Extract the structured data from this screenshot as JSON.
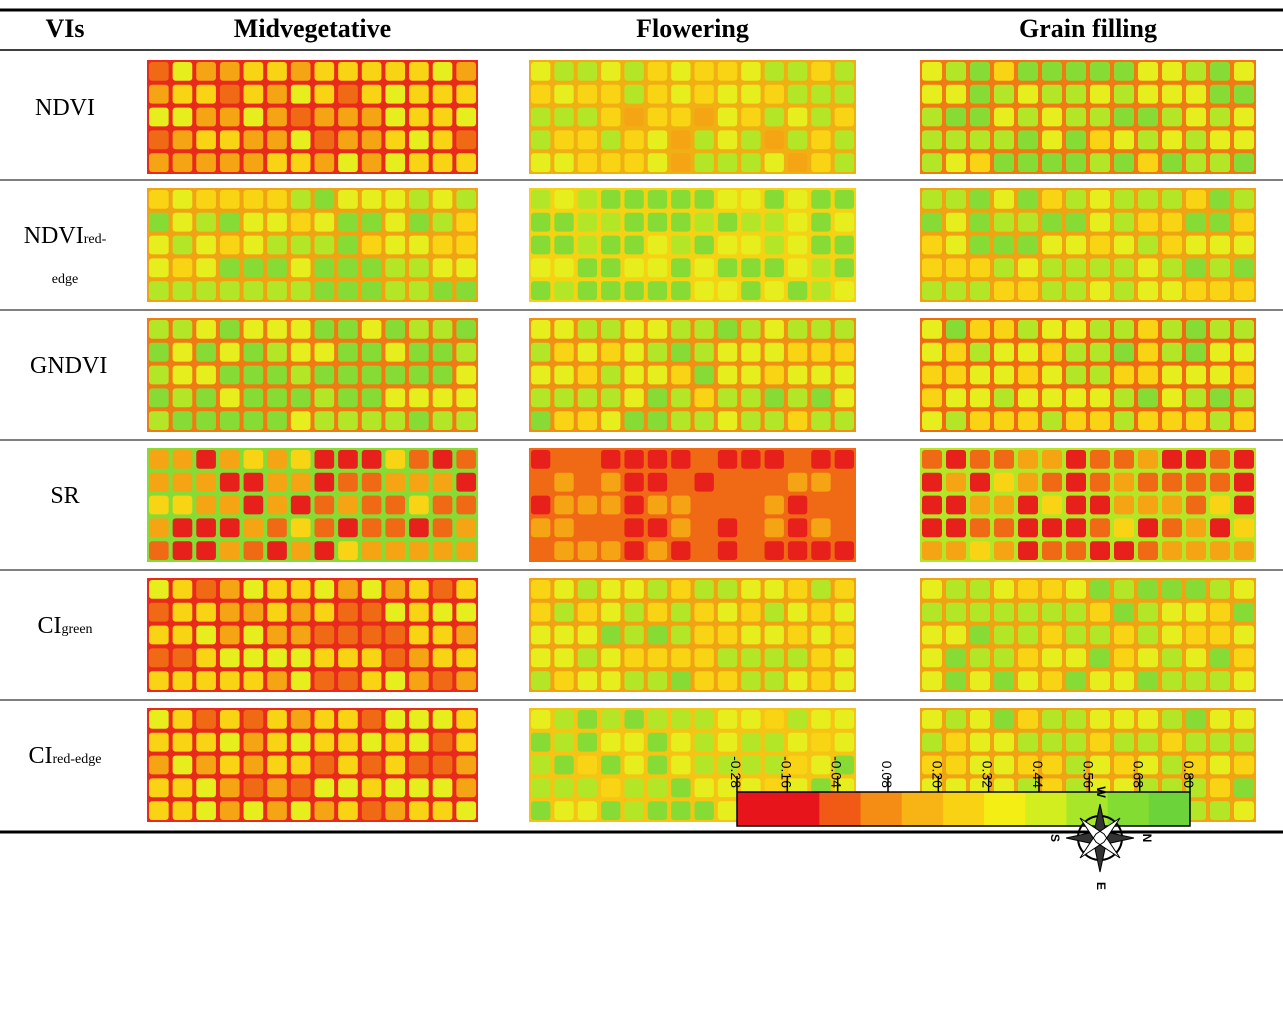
{
  "table": {
    "header": [
      "VIs",
      "Midvegetative",
      "Flowering",
      "Grain filling"
    ],
    "rows": [
      {
        "main": "NDVI",
        "sub": ""
      },
      {
        "main": "NDVI",
        "sub": "red-edge"
      },
      {
        "main": "GNDVI",
        "sub": ""
      },
      {
        "main": "SR",
        "sub": ""
      },
      {
        "main": "CI",
        "sub": "green"
      },
      {
        "main": "CI",
        "sub": "red-edge"
      }
    ]
  },
  "colorbar": {
    "lim": [
      -0.28,
      0.8
    ],
    "ticks": [
      {
        "value": -0.28,
        "label": "-0.28"
      },
      {
        "value": -0.16,
        "label": "-0.16"
      },
      {
        "value": -0.04,
        "label": "-0.04"
      },
      {
        "value": 0.08,
        "label": "0.08"
      },
      {
        "value": 0.2,
        "label": "0.20"
      },
      {
        "value": 0.32,
        "label": "0.32"
      },
      {
        "value": 0.44,
        "label": "0.44"
      },
      {
        "value": 0.56,
        "label": "0.56"
      },
      {
        "value": 0.68,
        "label": "0.68"
      },
      {
        "value": 0.8,
        "label": "0.80"
      }
    ],
    "colors": [
      "#e8141c",
      "#e8141c",
      "#f05a14",
      "#f58c14",
      "#f8b414",
      "#fad214",
      "#f5ee14",
      "#d2ee1e",
      "#a8e62a",
      "#82dc32",
      "#6cd43a"
    ]
  },
  "compass": [
    "W",
    "N",
    "E",
    "S"
  ]
}
